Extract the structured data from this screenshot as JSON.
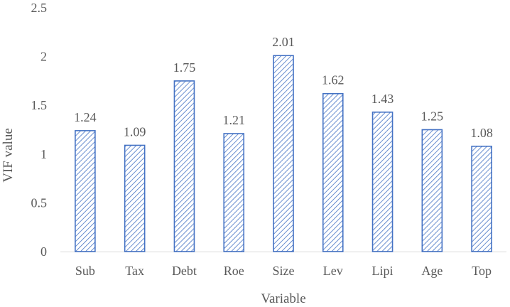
{
  "chart_data": {
    "type": "bar",
    "title": "",
    "xlabel": "Variable",
    "ylabel": "VIF value",
    "categories": [
      "Sub",
      "Tax",
      "Debt",
      "Roe",
      "Size",
      "Lev",
      "Lipi",
      "Age",
      "Top"
    ],
    "values": [
      1.24,
      1.09,
      1.75,
      1.21,
      2.01,
      1.62,
      1.43,
      1.25,
      1.08
    ],
    "value_labels": [
      "1.24",
      "1.09",
      "1.75",
      "1.21",
      "2.01",
      "1.62",
      "1.43",
      "1.25",
      "1.08"
    ],
    "ylim": [
      0,
      2.5
    ],
    "yticks": [
      0,
      0.5,
      1,
      1.5,
      2,
      2.5
    ],
    "ytick_labels": [
      "0",
      "0.5",
      "1",
      "1.5",
      "2",
      "2.5"
    ],
    "grid": false,
    "legend": "none",
    "bar_fill": "diagonal-hatch",
    "colors": {
      "bar_stroke": "#4472c4",
      "hatch": "#4472c4",
      "text": "#595959",
      "axis": "#d9d9d9"
    }
  }
}
